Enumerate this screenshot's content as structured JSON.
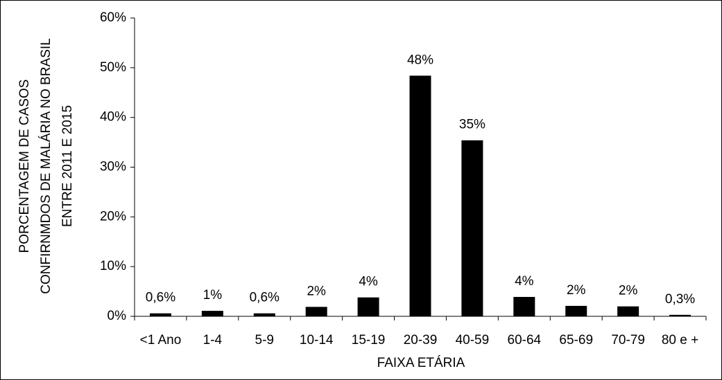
{
  "chart_data": {
    "type": "bar",
    "ylabel": [
      "PORCENTAGEM DE CASOS",
      "CONFIRNMDOS DE MALÁRIA NO BRASIL",
      "ENTRE 2011 E 2015"
    ],
    "xlabel": "FAIXA ETÁRIA",
    "categories": [
      "<1 Ano",
      "1-4",
      "5-9",
      "10-14",
      "15-19",
      "20-39",
      "40-59",
      "60-64",
      "65-69",
      "70-79",
      "80 e +"
    ],
    "values": [
      0.6,
      1.1,
      0.6,
      1.9,
      3.8,
      48.4,
      35.4,
      3.9,
      2.1,
      2.0,
      0.3
    ],
    "value_labels": [
      "0,6%",
      "1%",
      "0,6%",
      "2%",
      "4%",
      "48%",
      "35%",
      "4%",
      "2%",
      "2%",
      "0,3%"
    ],
    "color": "#000000",
    "ylim": [
      0,
      60
    ],
    "yticks": [
      {
        "value": 0,
        "label": "0%"
      },
      {
        "value": 10,
        "label": "10%"
      },
      {
        "value": 20,
        "label": "20%"
      },
      {
        "value": 30,
        "label": "30%"
      },
      {
        "value": 40,
        "label": "40%"
      },
      {
        "value": 50,
        "label": "50%"
      },
      {
        "value": 60,
        "label": "60%"
      }
    ],
    "grid": false
  }
}
